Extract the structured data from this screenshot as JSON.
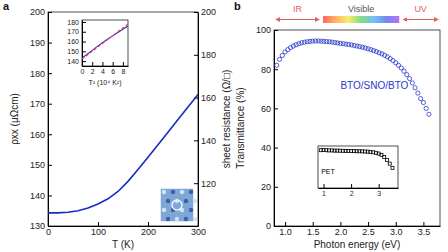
{
  "chart_data": [
    {
      "title": "a",
      "type": "line",
      "x_label": "T (K)",
      "y_label": "ρxx (μΩcm)",
      "y2_label": "sheet resistance (Ω/□)",
      "color": "#1a2bbf",
      "xlim": [
        0,
        300
      ],
      "xticks": [
        0,
        100,
        200,
        300
      ],
      "ylim": [
        130,
        200
      ],
      "yticks": [
        130,
        140,
        150,
        160,
        170,
        180,
        190,
        200
      ],
      "y2lim": [
        100,
        200
      ],
      "y2ticks": [
        120,
        140,
        160,
        180,
        200
      ],
      "x": [
        0,
        20,
        40,
        60,
        80,
        100,
        120,
        140,
        160,
        180,
        200,
        220,
        240,
        260,
        280,
        300
      ],
      "values": [
        134.3,
        134.3,
        134.5,
        135.0,
        135.9,
        137.2,
        138.9,
        141.3,
        144.6,
        148.5,
        152.5,
        156.6,
        160.7,
        164.8,
        168.9,
        173.0
      ]
    },
    {
      "type": "line",
      "x_label": "T² (10⁴ K²)",
      "xlim": [
        0,
        9
      ],
      "xticks": [
        0,
        2,
        4,
        6,
        8
      ],
      "ylim": [
        135,
        182
      ],
      "yticks": [
        140,
        150,
        160,
        170,
        180
      ],
      "x": [
        0,
        1,
        2,
        3,
        4,
        5,
        6,
        7,
        8,
        9
      ],
      "series": [
        {
          "color": "#2b2bd0",
          "line_style": "solid",
          "values": [
            143.0,
            147.0,
            151.0,
            155.0,
            158.7,
            162.3,
            165.8,
            169.2,
            172.5,
            175.8
          ]
        },
        {
          "color": "#e8403a",
          "line_style": "dashed",
          "values": [
            142.0,
            146.0,
            150.0,
            154.0,
            158.0,
            162.0,
            166.0,
            170.0,
            174.0,
            178.0
          ]
        }
      ]
    },
    {
      "title": "b",
      "type": "scatter",
      "x_label": "Photon energy (eV)",
      "y_label": "Transmittance (%)",
      "xlim": [
        0.8,
        3.8
      ],
      "xticks": [
        {
          "value": 1,
          "label": "1.0"
        },
        1.5,
        {
          "value": 2,
          "label": "2.0"
        },
        2.5,
        {
          "value": 3,
          "label": "3.0"
        },
        3.5
      ],
      "ylim": [
        0,
        100
      ],
      "yticks": [
        0,
        20,
        40,
        60,
        80,
        100
      ],
      "regions": [
        {
          "label": "IR",
          "from": 0.8,
          "to": 1.65,
          "color": "#e0605e"
        },
        {
          "label": "Visible",
          "from": 1.65,
          "to": 3.1,
          "colors": [
            "#ff3030",
            "#ff9a2a",
            "#f5e83a",
            "#5ad05a",
            "#40b0f0",
            "#4a5ee8",
            "#9a4ae8"
          ]
        },
        {
          "label": "UV",
          "from": 3.1,
          "to": 3.8,
          "color": "#e0605e"
        }
      ],
      "x": [
        0.85,
        0.9,
        0.95,
        1.0,
        1.05,
        1.1,
        1.15,
        1.2,
        1.25,
        1.3,
        1.35,
        1.4,
        1.45,
        1.5,
        1.55,
        1.6,
        1.65,
        1.7,
        1.75,
        1.8,
        1.85,
        1.9,
        1.95,
        2.0,
        2.05,
        2.1,
        2.15,
        2.2,
        2.25,
        2.3,
        2.35,
        2.4,
        2.45,
        2.5,
        2.55,
        2.6,
        2.65,
        2.7,
        2.75,
        2.8,
        2.85,
        2.9,
        2.95,
        3.0,
        3.05,
        3.1,
        3.15,
        3.2,
        3.25,
        3.3,
        3.35,
        3.4,
        3.45,
        3.5,
        3.55,
        3.6
      ],
      "series": [
        {
          "name": "BTO/SNO/BTO",
          "color": "#2838c8",
          "marker": "circle",
          "values": [
            82.0,
            85.0,
            87.0,
            88.8,
            90.0,
            91.0,
            91.8,
            92.5,
            93.0,
            93.5,
            93.8,
            94.0,
            94.2,
            94.3,
            94.4,
            94.4,
            94.3,
            94.2,
            94.1,
            94.0,
            93.8,
            93.6,
            93.4,
            93.2,
            93.0,
            92.8,
            92.6,
            92.4,
            92.1,
            91.8,
            91.5,
            91.2,
            90.8,
            90.4,
            90.0,
            89.5,
            89.0,
            88.4,
            87.8,
            87.1,
            86.3,
            85.4,
            84.4,
            83.3,
            82.0,
            80.6,
            79.0,
            77.2,
            75.2,
            73.0,
            70.5,
            67.8,
            65.0,
            63.0,
            60.0,
            57.0
          ]
        }
      ]
    },
    {
      "type": "scatter",
      "tick_labels": "x",
      "xlim": [
        0.8,
        3.7
      ],
      "xticks": [
        1,
        2,
        3
      ],
      "ylim": [
        0,
        100
      ],
      "x": [
        0.9,
        1.0,
        1.1,
        1.2,
        1.3,
        1.4,
        1.5,
        1.6,
        1.7,
        1.8,
        1.9,
        2.0,
        2.1,
        2.2,
        2.3,
        2.4,
        2.5,
        2.6,
        2.7,
        2.8,
        2.9,
        3.0,
        3.1,
        3.2,
        3.3,
        3.4,
        3.5
      ],
      "series": [
        {
          "name": "PET",
          "color": "#000000",
          "marker": "square",
          "values": [
            90.0,
            90.5,
            90.0,
            89.5,
            89.5,
            89.0,
            89.0,
            88.8,
            88.6,
            88.5,
            88.3,
            88.0,
            87.8,
            87.6,
            87.4,
            87.2,
            87.0,
            86.5,
            86.0,
            85.0,
            83.8,
            82.0,
            79.0,
            74.0,
            67.0,
            58.0,
            48.0
          ]
        }
      ]
    }
  ]
}
